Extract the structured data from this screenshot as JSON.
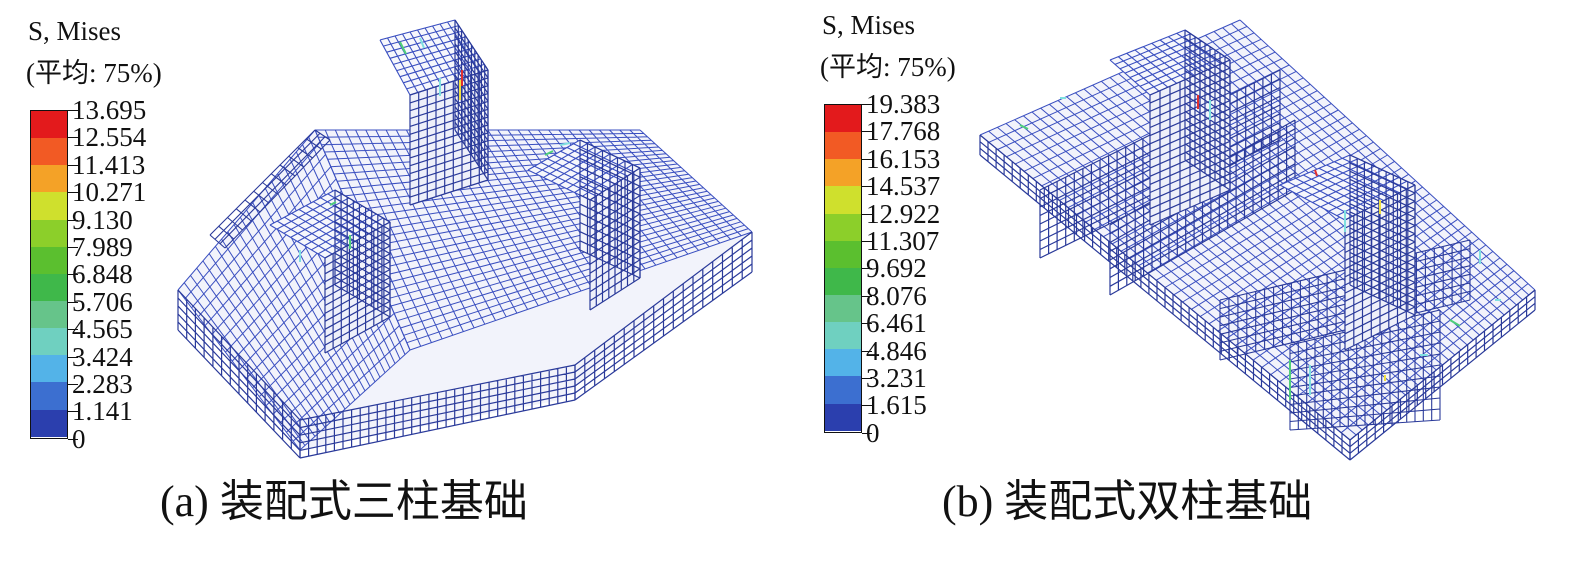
{
  "panels": [
    {
      "id": "a",
      "legend": {
        "title_line1": "S, Mises",
        "title_line2": "(平均: 75%)",
        "values": [
          "13.695",
          "12.554",
          "11.413",
          "10.271",
          "9.130",
          "7.989",
          "6.848",
          "5.706",
          "4.565",
          "3.424",
          "2.283",
          "1.141",
          "0"
        ]
      },
      "caption": "(a) 装配式三柱基础"
    },
    {
      "id": "b",
      "legend": {
        "title_line1": "S, Mises",
        "title_line2": "(平均: 75%)",
        "values": [
          "19.383",
          "17.768",
          "16.153",
          "14.537",
          "12.922",
          "11.307",
          "9.692",
          "8.076",
          "6.461",
          "4.846",
          "3.231",
          "1.615",
          "0"
        ]
      },
      "caption": "(b) 装配式双柱基础"
    }
  ],
  "colors": {
    "contour": [
      "#e31a1c",
      "#f25a24",
      "#f4a227",
      "#cfe02d",
      "#8ccf2a",
      "#5bbf2f",
      "#3fb84a",
      "#66c48a",
      "#6fd0c0",
      "#53b3e8",
      "#3c6fd0",
      "#2b3fae"
    ],
    "mesh": "#3a4fc0",
    "mesh_dark": "#2a3a9a",
    "hot": [
      "#4ecf7a",
      "#7fe0e0",
      "#f0e040",
      "#e03030"
    ]
  }
}
